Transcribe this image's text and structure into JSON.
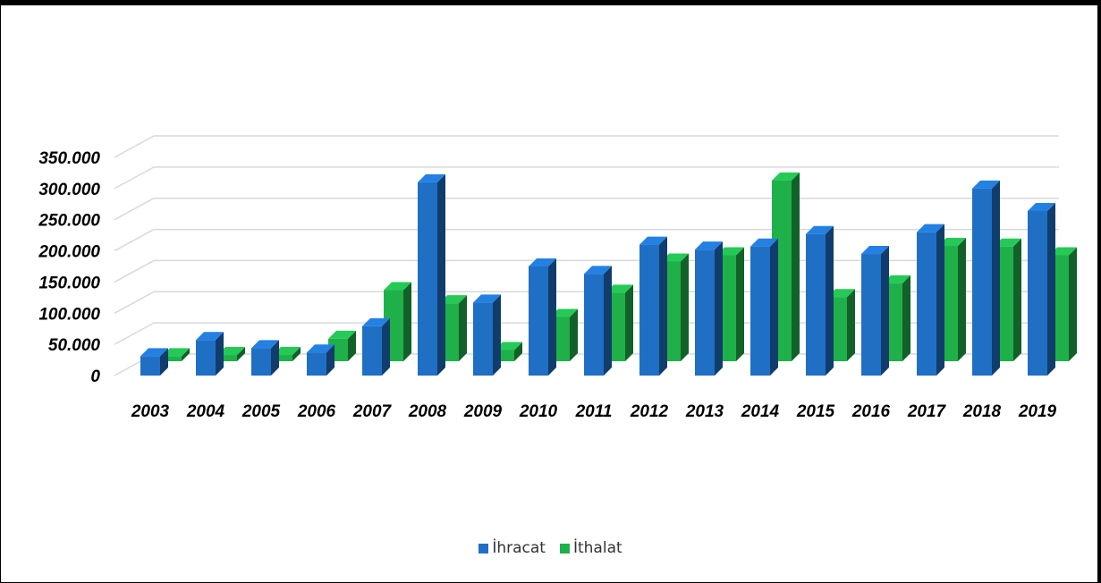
{
  "chart_data": {
    "type": "bar",
    "title": "",
    "xlabel": "",
    "ylabel": "",
    "categories": [
      "2003",
      "2004",
      "2005",
      "2006",
      "2007",
      "2008",
      "2009",
      "2010",
      "2011",
      "2012",
      "2013",
      "2014",
      "2015",
      "2016",
      "2017",
      "2018",
      "2019"
    ],
    "series": [
      {
        "name": "İhracat",
        "color": "#1F6FC5",
        "values": [
          31000,
          57000,
          44000,
          37000,
          79000,
          310000,
          117000,
          175000,
          163000,
          210000,
          202000,
          207000,
          227000,
          195000,
          230000,
          300000,
          264000
        ]
      },
      {
        "name": "İthalat",
        "color": "#1FB04A",
        "values": [
          8000,
          10000,
          10000,
          36000,
          114000,
          93000,
          18000,
          71000,
          110000,
          160000,
          170000,
          290000,
          103000,
          125000,
          185000,
          184000,
          170000
        ]
      }
    ],
    "ylim": [
      0,
      350000
    ],
    "yticks": [
      "0",
      "50.000",
      "100.000",
      "150.000",
      "200.000",
      "250.000",
      "300.000",
      "350.000"
    ],
    "grid": true,
    "legend_position": "bottom"
  }
}
